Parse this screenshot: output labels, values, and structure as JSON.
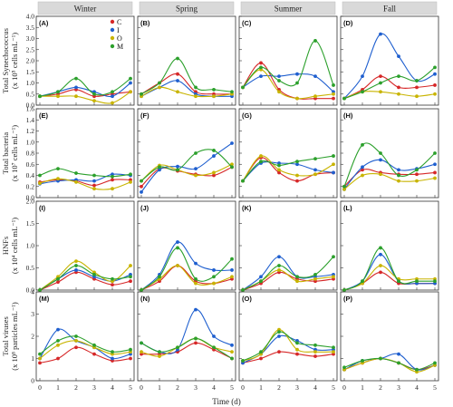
{
  "figure": {
    "seasons": [
      "Winter",
      "Spring",
      "Summer",
      "Fall"
    ],
    "x_title": "Time (d)",
    "x_ticks": [
      "0",
      "1",
      "2",
      "3",
      "4",
      "5"
    ],
    "rows": [
      {
        "ylabel_lines": [
          "Total Synechococcus",
          "(x 10⁵ cells mL⁻¹)"
        ],
        "ylim": [
          0,
          4.0
        ],
        "yticks": [
          "0.0",
          "0.5",
          "1.0",
          "1.5",
          "2.0",
          "2.5",
          "3.0",
          "3.5",
          "4.0"
        ],
        "ytick_values": [
          0,
          0.5,
          1.0,
          1.5,
          2.0,
          2.5,
          3.0,
          3.5,
          4.0
        ]
      },
      {
        "ylabel_lines": [
          "Total bacteria",
          "(x 10⁷ cells mL⁻¹)"
        ],
        "ylim": [
          0,
          1.6
        ],
        "yticks": [
          "0.0",
          "0.2",
          "0.4",
          "0.6",
          "0.8",
          "1.0",
          "1.2",
          "1.4",
          "1.6"
        ],
        "ytick_values": [
          0,
          0.2,
          0.4,
          0.6,
          0.8,
          1.0,
          1.2,
          1.4,
          1.6
        ]
      },
      {
        "ylabel_lines": [
          "HNFs",
          "(x 10⁴ cells mL⁻¹)"
        ],
        "ylim": [
          0,
          2.0
        ],
        "yticks": [
          "0.0",
          "0.5",
          "1.0",
          "1.5",
          "2.0"
        ],
        "ytick_values": [
          0,
          0.5,
          1.0,
          1.5,
          2.0
        ]
      },
      {
        "ylabel_lines": [
          "Total viruses",
          "(x 10⁸ particles mL⁻¹)"
        ],
        "ylim": [
          0,
          4.0
        ],
        "yticks": [
          "0",
          "1",
          "2",
          "3",
          "4"
        ],
        "ytick_values": [
          0,
          1,
          2,
          3,
          4
        ]
      }
    ],
    "legend": [
      {
        "label": "C",
        "color": "#d62728"
      },
      {
        "label": "I",
        "color": "#1f5fcf"
      },
      {
        "label": "O",
        "color": "#c8b400"
      },
      {
        "label": "M",
        "color": "#2ca02c"
      }
    ]
  },
  "chart_data": [
    {
      "panel": "(A)",
      "season": "Winter",
      "type": "line",
      "x": [
        0,
        1,
        2,
        3,
        4,
        5
      ],
      "ylim": [
        0,
        4
      ],
      "series": [
        {
          "name": "C",
          "values": [
            0.4,
            0.5,
            0.7,
            0.4,
            0.5,
            0.6
          ]
        },
        {
          "name": "I",
          "values": [
            0.4,
            0.6,
            0.8,
            0.6,
            0.4,
            1.0
          ]
        },
        {
          "name": "O",
          "values": [
            0.4,
            0.4,
            0.4,
            0.2,
            0.1,
            0.6
          ]
        },
        {
          "name": "M",
          "values": [
            0.4,
            0.6,
            1.2,
            0.5,
            0.6,
            1.2
          ]
        }
      ]
    },
    {
      "panel": "(B)",
      "season": "Spring",
      "type": "line",
      "x": [
        0,
        1,
        2,
        3,
        4,
        5
      ],
      "ylim": [
        0,
        4
      ],
      "series": [
        {
          "name": "C",
          "values": [
            0.5,
            1.0,
            1.4,
            0.6,
            0.5,
            0.5
          ]
        },
        {
          "name": "I",
          "values": [
            0.4,
            0.8,
            1.1,
            0.5,
            0.4,
            0.4
          ]
        },
        {
          "name": "O",
          "values": [
            0.4,
            0.8,
            0.6,
            0.4,
            0.4,
            0.5
          ]
        },
        {
          "name": "M",
          "values": [
            0.5,
            1.0,
            2.1,
            0.8,
            0.7,
            0.6
          ]
        }
      ]
    },
    {
      "panel": "(C)",
      "season": "Summer",
      "type": "line",
      "x": [
        0,
        1,
        2,
        3,
        4,
        5
      ],
      "ylim": [
        0,
        4
      ],
      "series": [
        {
          "name": "C",
          "values": [
            0.8,
            1.9,
            0.7,
            0.3,
            0.3,
            0.3
          ]
        },
        {
          "name": "I",
          "values": [
            0.8,
            1.3,
            1.3,
            1.4,
            1.3,
            0.6
          ]
        },
        {
          "name": "O",
          "values": [
            0.8,
            1.6,
            0.6,
            0.3,
            0.4,
            0.5
          ]
        },
        {
          "name": "M",
          "values": [
            0.8,
            1.7,
            1.1,
            1.0,
            2.9,
            0.9
          ]
        }
      ]
    },
    {
      "panel": "(D)",
      "season": "Fall",
      "type": "line",
      "x": [
        0,
        1,
        2,
        3,
        4,
        5
      ],
      "ylim": [
        0,
        4
      ],
      "series": [
        {
          "name": "C",
          "values": [
            0.3,
            0.7,
            1.3,
            0.8,
            0.8,
            0.9
          ]
        },
        {
          "name": "I",
          "values": [
            0.3,
            1.3,
            3.2,
            2.2,
            1.1,
            1.4
          ]
        },
        {
          "name": "O",
          "values": [
            0.3,
            0.6,
            0.6,
            0.5,
            0.4,
            0.5
          ]
        },
        {
          "name": "M",
          "values": [
            0.3,
            0.6,
            1.0,
            1.3,
            1.1,
            1.7
          ]
        }
      ]
    },
    {
      "panel": "(E)",
      "season": "Winter",
      "type": "line",
      "x": [
        0,
        1,
        2,
        3,
        4,
        5
      ],
      "ylim": [
        0,
        1.6
      ],
      "series": [
        {
          "name": "C",
          "values": [
            0.28,
            0.32,
            0.3,
            0.22,
            0.32,
            0.32
          ]
        },
        {
          "name": "I",
          "values": [
            0.25,
            0.3,
            0.32,
            0.3,
            0.42,
            0.4
          ]
        },
        {
          "name": "O",
          "values": [
            0.26,
            0.34,
            0.28,
            0.16,
            0.16,
            0.28
          ]
        },
        {
          "name": "M",
          "values": [
            0.4,
            0.52,
            0.44,
            0.4,
            0.38,
            0.42
          ]
        }
      ]
    },
    {
      "panel": "(F)",
      "season": "Spring",
      "type": "line",
      "x": [
        0,
        1,
        2,
        3,
        4,
        5
      ],
      "ylim": [
        0,
        1.6
      ],
      "series": [
        {
          "name": "C",
          "values": [
            0.2,
            0.52,
            0.48,
            0.42,
            0.4,
            0.55
          ]
        },
        {
          "name": "I",
          "values": [
            0.1,
            0.5,
            0.56,
            0.52,
            0.75,
            0.98
          ]
        },
        {
          "name": "O",
          "values": [
            0.3,
            0.58,
            0.5,
            0.4,
            0.45,
            0.6
          ]
        },
        {
          "name": "M",
          "values": [
            0.3,
            0.55,
            0.5,
            0.8,
            0.85,
            0.55
          ]
        }
      ]
    },
    {
      "panel": "(G)",
      "season": "Summer",
      "type": "line",
      "x": [
        0,
        1,
        2,
        3,
        4,
        5
      ],
      "ylim": [
        0,
        1.6
      ],
      "series": [
        {
          "name": "C",
          "values": [
            0.3,
            0.72,
            0.45,
            0.3,
            0.42,
            0.45
          ]
        },
        {
          "name": "I",
          "values": [
            0.3,
            0.62,
            0.62,
            0.6,
            0.5,
            0.45
          ]
        },
        {
          "name": "O",
          "values": [
            0.3,
            0.75,
            0.5,
            0.4,
            0.42,
            0.6
          ]
        },
        {
          "name": "M",
          "values": [
            0.3,
            0.65,
            0.58,
            0.65,
            0.7,
            0.75
          ]
        }
      ]
    },
    {
      "panel": "(H)",
      "season": "Fall",
      "type": "line",
      "x": [
        0,
        1,
        2,
        3,
        4,
        5
      ],
      "ylim": [
        0,
        1.6
      ],
      "series": [
        {
          "name": "C",
          "values": [
            0.2,
            0.5,
            0.45,
            0.42,
            0.42,
            0.45
          ]
        },
        {
          "name": "I",
          "values": [
            0.15,
            0.55,
            0.68,
            0.5,
            0.52,
            0.6
          ]
        },
        {
          "name": "O",
          "values": [
            0.15,
            0.4,
            0.42,
            0.3,
            0.3,
            0.35
          ]
        },
        {
          "name": "M",
          "values": [
            0.2,
            0.95,
            0.8,
            0.4,
            0.5,
            0.8
          ]
        }
      ]
    },
    {
      "panel": "(I)",
      "season": "Winter",
      "type": "line",
      "x": [
        0,
        1,
        2,
        3,
        4,
        5
      ],
      "ylim": [
        0,
        2
      ],
      "series": [
        {
          "name": "C",
          "values": [
            0.0,
            0.18,
            0.4,
            0.25,
            0.12,
            0.2
          ]
        },
        {
          "name": "I",
          "values": [
            0.0,
            0.25,
            0.45,
            0.3,
            0.2,
            0.35
          ]
        },
        {
          "name": "O",
          "values": [
            0.0,
            0.3,
            0.65,
            0.4,
            0.2,
            0.55
          ]
        },
        {
          "name": "M",
          "values": [
            0.0,
            0.25,
            0.55,
            0.35,
            0.25,
            0.3
          ]
        }
      ]
    },
    {
      "panel": "(J)",
      "season": "Spring",
      "type": "line",
      "x": [
        0,
        1,
        2,
        3,
        4,
        5
      ],
      "ylim": [
        0,
        2
      ],
      "series": [
        {
          "name": "C",
          "values": [
            0.0,
            0.2,
            0.55,
            0.2,
            0.15,
            0.25
          ]
        },
        {
          "name": "I",
          "values": [
            0.0,
            0.35,
            1.08,
            0.6,
            0.45,
            0.45
          ]
        },
        {
          "name": "O",
          "values": [
            0.0,
            0.25,
            0.55,
            0.15,
            0.15,
            0.3
          ]
        },
        {
          "name": "M",
          "values": [
            0.0,
            0.3,
            0.95,
            0.25,
            0.3,
            0.7
          ]
        }
      ]
    },
    {
      "panel": "(K)",
      "season": "Summer",
      "type": "line",
      "x": [
        0,
        1,
        2,
        3,
        4,
        5
      ],
      "ylim": [
        0,
        2
      ],
      "series": [
        {
          "name": "C",
          "values": [
            0.0,
            0.15,
            0.4,
            0.25,
            0.2,
            0.25
          ]
        },
        {
          "name": "I",
          "values": [
            0.0,
            0.3,
            0.75,
            0.3,
            0.3,
            0.35
          ]
        },
        {
          "name": "O",
          "values": [
            0.0,
            0.2,
            0.45,
            0.2,
            0.25,
            0.3
          ]
        },
        {
          "name": "M",
          "values": [
            0.0,
            0.2,
            0.55,
            0.3,
            0.35,
            0.75
          ]
        }
      ]
    },
    {
      "panel": "(L)",
      "season": "Fall",
      "type": "line",
      "x": [
        0,
        1,
        2,
        3,
        4,
        5
      ],
      "ylim": [
        0,
        2
      ],
      "series": [
        {
          "name": "C",
          "values": [
            0.0,
            0.15,
            0.4,
            0.15,
            0.15,
            0.15
          ]
        },
        {
          "name": "I",
          "values": [
            0.0,
            0.2,
            0.8,
            0.2,
            0.15,
            0.15
          ]
        },
        {
          "name": "O",
          "values": [
            0.0,
            0.15,
            0.55,
            0.25,
            0.25,
            0.25
          ]
        },
        {
          "name": "M",
          "values": [
            0.0,
            0.2,
            0.95,
            0.2,
            0.2,
            0.2
          ]
        }
      ]
    },
    {
      "panel": "(M)",
      "season": "Winter",
      "type": "line",
      "x": [
        0,
        1,
        2,
        3,
        4,
        5
      ],
      "ylim": [
        0,
        4
      ],
      "series": [
        {
          "name": "C",
          "values": [
            0.8,
            1.0,
            1.5,
            1.2,
            0.9,
            1.0
          ]
        },
        {
          "name": "I",
          "values": [
            1.0,
            2.3,
            1.8,
            1.5,
            1.0,
            1.2
          ]
        },
        {
          "name": "O",
          "values": [
            1.0,
            1.6,
            1.8,
            1.5,
            1.2,
            1.3
          ]
        },
        {
          "name": "M",
          "values": [
            1.2,
            1.8,
            2.0,
            1.6,
            1.3,
            1.4
          ]
        }
      ]
    },
    {
      "panel": "(N)",
      "season": "Spring",
      "type": "line",
      "x": [
        0,
        1,
        2,
        3,
        4,
        5
      ],
      "ylim": [
        0,
        4
      ],
      "series": [
        {
          "name": "C",
          "values": [
            1.2,
            1.2,
            1.3,
            1.7,
            1.4,
            1.0
          ]
        },
        {
          "name": "I",
          "values": [
            1.7,
            1.3,
            1.4,
            3.2,
            2.0,
            1.6
          ]
        },
        {
          "name": "O",
          "values": [
            1.3,
            1.1,
            1.5,
            1.9,
            1.5,
            1.3
          ]
        },
        {
          "name": "M",
          "values": [
            1.7,
            1.3,
            1.5,
            1.9,
            1.5,
            1.0
          ]
        }
      ]
    },
    {
      "panel": "(O)",
      "season": "Summer",
      "type": "line",
      "x": [
        0,
        1,
        2,
        3,
        4,
        5
      ],
      "ylim": [
        0,
        4
      ],
      "series": [
        {
          "name": "C",
          "values": [
            0.8,
            1.0,
            1.3,
            1.2,
            1.1,
            1.2
          ]
        },
        {
          "name": "I",
          "values": [
            0.8,
            1.2,
            2.0,
            1.8,
            1.4,
            1.4
          ]
        },
        {
          "name": "O",
          "values": [
            0.9,
            1.2,
            2.3,
            1.4,
            1.3,
            1.3
          ]
        },
        {
          "name": "M",
          "values": [
            0.9,
            1.3,
            2.2,
            1.7,
            1.6,
            1.5
          ]
        }
      ]
    },
    {
      "panel": "(P)",
      "season": "Fall",
      "type": "line",
      "x": [
        0,
        1,
        2,
        3,
        4,
        5
      ],
      "ylim": [
        0,
        4
      ],
      "series": [
        {
          "name": "C",
          "values": [
            0.5,
            0.8,
            1.0,
            0.8,
            0.5,
            0.7
          ]
        },
        {
          "name": "I",
          "values": [
            0.5,
            0.9,
            1.0,
            1.2,
            0.5,
            0.7
          ]
        },
        {
          "name": "O",
          "values": [
            0.5,
            0.8,
            1.0,
            0.8,
            0.4,
            0.7
          ]
        },
        {
          "name": "M",
          "values": [
            0.6,
            0.9,
            1.0,
            0.8,
            0.5,
            0.8
          ]
        }
      ]
    }
  ]
}
